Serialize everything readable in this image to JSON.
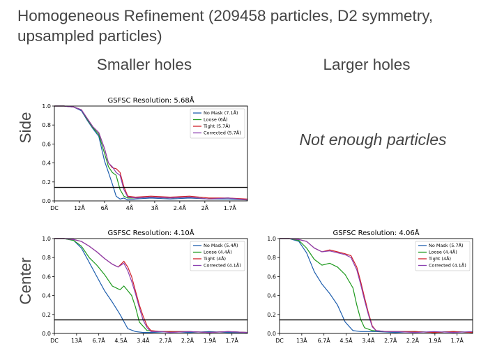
{
  "title": "Homogeneous Refinement (209458 particles, D2 symmetry, upsampled particles)",
  "columns": [
    "Smaller holes",
    "Larger holes"
  ],
  "rows": [
    "Side",
    "Center"
  ],
  "placeholder_text": "Not enough particles",
  "colors": {
    "No Mask": "#1f5fae",
    "Loose": "#1e9a1e",
    "Tight": "#d0202a",
    "Corrected": "#8a3fb0",
    "threshold": "#000000"
  },
  "chart_data": [
    {
      "id": "side-smaller",
      "type": "line",
      "title": "GSFSC Resolution: 5.68Å",
      "ylim": [
        0,
        1
      ],
      "yticks": [
        "0.0",
        "0.2",
        "0.4",
        "0.6",
        "0.8",
        "1.0"
      ],
      "xticks": [
        "DC",
        "12Å",
        "6Å",
        "4Å",
        "3Å",
        "2.4Å",
        "2Å",
        "1.7Å"
      ],
      "threshold": 0.143,
      "legend": [
        "No Mask (7.1Å)",
        "Loose (6Å)",
        "Tight (5.7Å)",
        "Corrected (5.7Å)"
      ],
      "series": [
        {
          "name": "No Mask (7.1Å)",
          "key": "No Mask",
          "x": [
            0,
            0.05,
            0.1,
            0.14,
            0.17,
            0.2,
            0.23,
            0.26,
            0.28,
            0.3,
            0.32,
            0.34,
            0.36,
            0.38,
            0.42,
            0.5,
            0.6,
            0.7,
            0.8,
            0.9,
            1.0
          ],
          "y": [
            1.0,
            1.0,
            0.99,
            0.95,
            0.85,
            0.76,
            0.68,
            0.42,
            0.3,
            0.18,
            0.05,
            0.02,
            0.03,
            0.01,
            0.02,
            0.03,
            0.02,
            0.03,
            0.02,
            0.02,
            0.01
          ]
        },
        {
          "name": "Loose (6Å)",
          "key": "Loose",
          "x": [
            0,
            0.05,
            0.1,
            0.14,
            0.17,
            0.2,
            0.23,
            0.26,
            0.28,
            0.3,
            0.32,
            0.34,
            0.36,
            0.38,
            0.42,
            0.5,
            0.6,
            0.7,
            0.8,
            0.9,
            1.0
          ],
          "y": [
            1.0,
            1.0,
            0.99,
            0.96,
            0.86,
            0.77,
            0.7,
            0.5,
            0.36,
            0.3,
            0.27,
            0.12,
            0.05,
            0.03,
            0.03,
            0.04,
            0.03,
            0.04,
            0.02,
            0.03,
            0.01
          ]
        },
        {
          "name": "Tight (5.7Å)",
          "key": "Tight",
          "x": [
            0,
            0.05,
            0.1,
            0.14,
            0.17,
            0.2,
            0.23,
            0.26,
            0.28,
            0.3,
            0.32,
            0.34,
            0.36,
            0.38,
            0.42,
            0.5,
            0.6,
            0.7,
            0.8,
            0.9,
            1.0
          ],
          "y": [
            1.0,
            1.0,
            0.99,
            0.96,
            0.87,
            0.78,
            0.72,
            0.55,
            0.4,
            0.35,
            0.34,
            0.3,
            0.15,
            0.05,
            0.04,
            0.05,
            0.04,
            0.05,
            0.03,
            0.03,
            0.02
          ]
        },
        {
          "name": "Corrected (5.7Å)",
          "key": "Corrected",
          "x": [
            0,
            0.05,
            0.1,
            0.14,
            0.17,
            0.2,
            0.23,
            0.26,
            0.28,
            0.3,
            0.32,
            0.34,
            0.36,
            0.38,
            0.42,
            0.5,
            0.6,
            0.7,
            0.8,
            0.9,
            1.0
          ],
          "y": [
            1.0,
            1.0,
            0.99,
            0.96,
            0.87,
            0.78,
            0.72,
            0.55,
            0.4,
            0.36,
            0.3,
            0.27,
            0.12,
            0.04,
            0.03,
            0.04,
            0.03,
            0.04,
            0.02,
            0.03,
            0.01
          ]
        }
      ]
    },
    {
      "id": "center-smaller",
      "type": "line",
      "title": "GSFSC Resolution: 4.10Å",
      "ylim": [
        0,
        1
      ],
      "yticks": [
        "0.0",
        "0.2",
        "0.4",
        "0.6",
        "0.8",
        "1.0"
      ],
      "xticks": [
        "DC",
        "13Å",
        "6.7Å",
        "4.5Å",
        "3.4Å",
        "2.7Å",
        "2.2Å",
        "1.9Å",
        "1.7Å"
      ],
      "threshold": 0.143,
      "legend": [
        "No Mask (5.4Å)",
        "Loose (4.4Å)",
        "Tight (4Å)",
        "Corrected (4.1Å)"
      ],
      "series": [
        {
          "name": "No Mask (5.4Å)",
          "key": "No Mask",
          "x": [
            0,
            0.05,
            0.1,
            0.14,
            0.18,
            0.22,
            0.26,
            0.3,
            0.34,
            0.38,
            0.42,
            0.46,
            0.5,
            0.6,
            0.7,
            0.8,
            0.9,
            1.0
          ],
          "y": [
            1.0,
            1.0,
            0.98,
            0.9,
            0.75,
            0.6,
            0.45,
            0.33,
            0.2,
            0.05,
            0.02,
            0.01,
            0.01,
            0.02,
            0.01,
            0.02,
            0.01,
            0.01
          ]
        },
        {
          "name": "Loose (4.4Å)",
          "key": "Loose",
          "x": [
            0,
            0.05,
            0.1,
            0.14,
            0.18,
            0.22,
            0.26,
            0.3,
            0.34,
            0.36,
            0.38,
            0.4,
            0.42,
            0.44,
            0.48,
            0.55,
            0.6,
            0.7,
            0.8,
            0.9,
            1.0
          ],
          "y": [
            1.0,
            1.0,
            0.98,
            0.92,
            0.8,
            0.72,
            0.62,
            0.5,
            0.46,
            0.5,
            0.45,
            0.4,
            0.28,
            0.12,
            0.03,
            0.02,
            0.02,
            0.02,
            0.01,
            0.02,
            0.01
          ]
        },
        {
          "name": "Tight (4Å)",
          "key": "Tight",
          "x": [
            0,
            0.05,
            0.1,
            0.14,
            0.18,
            0.22,
            0.26,
            0.3,
            0.33,
            0.36,
            0.38,
            0.4,
            0.42,
            0.44,
            0.46,
            0.48,
            0.5,
            0.55,
            0.6,
            0.7,
            0.8,
            0.9,
            1.0
          ],
          "y": [
            1.0,
            1.0,
            0.99,
            0.97,
            0.92,
            0.86,
            0.79,
            0.73,
            0.7,
            0.76,
            0.7,
            0.6,
            0.45,
            0.3,
            0.18,
            0.08,
            0.03,
            0.02,
            0.02,
            0.02,
            0.01,
            0.02,
            0.01
          ]
        },
        {
          "name": "Corrected (4.1Å)",
          "key": "Corrected",
          "x": [
            0,
            0.05,
            0.1,
            0.14,
            0.18,
            0.22,
            0.26,
            0.3,
            0.33,
            0.36,
            0.38,
            0.4,
            0.42,
            0.44,
            0.46,
            0.48,
            0.5,
            0.55,
            0.6,
            0.7,
            0.8,
            0.9,
            1.0
          ],
          "y": [
            1.0,
            1.0,
            0.99,
            0.97,
            0.92,
            0.86,
            0.79,
            0.73,
            0.7,
            0.74,
            0.66,
            0.55,
            0.42,
            0.27,
            0.14,
            0.06,
            0.02,
            0.02,
            0.01,
            0.02,
            0.01,
            0.02,
            0.01
          ]
        }
      ]
    },
    {
      "id": "center-larger",
      "type": "line",
      "title": "GSFSC Resolution: 4.06Å",
      "ylim": [
        0,
        1
      ],
      "yticks": [
        "0.0",
        "0.2",
        "0.4",
        "0.6",
        "0.8",
        "1.0"
      ],
      "xticks": [
        "DC",
        "13Å",
        "6.7Å",
        "4.5Å",
        "3.4Å",
        "2.7Å",
        "2.2Å",
        "1.9Å",
        "1.7Å"
      ],
      "threshold": 0.143,
      "legend": [
        "No Mask (5.7Å)",
        "Loose (4.4Å)",
        "Tight (4Å)",
        "Corrected (4.1Å)"
      ],
      "series": [
        {
          "name": "No Mask (5.7Å)",
          "key": "No Mask",
          "x": [
            0,
            0.05,
            0.1,
            0.14,
            0.18,
            0.22,
            0.26,
            0.3,
            0.34,
            0.38,
            0.42,
            0.5,
            0.6,
            0.7,
            0.8,
            0.9,
            1.0
          ],
          "y": [
            1.0,
            1.0,
            0.97,
            0.85,
            0.65,
            0.52,
            0.42,
            0.3,
            0.12,
            0.03,
            0.02,
            0.02,
            0.01,
            0.02,
            0.01,
            0.02,
            0.01
          ]
        },
        {
          "name": "Loose (4.4Å)",
          "key": "Loose",
          "x": [
            0,
            0.05,
            0.1,
            0.14,
            0.18,
            0.22,
            0.26,
            0.3,
            0.34,
            0.38,
            0.4,
            0.42,
            0.44,
            0.48,
            0.55,
            0.6,
            0.7,
            0.8,
            0.9,
            1.0
          ],
          "y": [
            1.0,
            1.0,
            0.98,
            0.9,
            0.78,
            0.72,
            0.74,
            0.7,
            0.62,
            0.48,
            0.3,
            0.15,
            0.06,
            0.03,
            0.02,
            0.02,
            0.02,
            0.01,
            0.02,
            0.01
          ]
        },
        {
          "name": "Tight (4Å)",
          "key": "Tight",
          "x": [
            0,
            0.05,
            0.1,
            0.14,
            0.18,
            0.22,
            0.26,
            0.3,
            0.34,
            0.37,
            0.4,
            0.42,
            0.44,
            0.46,
            0.48,
            0.5,
            0.55,
            0.6,
            0.7,
            0.8,
            0.9,
            1.0
          ],
          "y": [
            1.0,
            1.0,
            0.99,
            0.97,
            0.9,
            0.86,
            0.88,
            0.86,
            0.84,
            0.82,
            0.7,
            0.55,
            0.38,
            0.22,
            0.08,
            0.03,
            0.02,
            0.02,
            0.02,
            0.01,
            0.02,
            0.01
          ]
        },
        {
          "name": "Corrected (4.1Å)",
          "key": "Corrected",
          "x": [
            0,
            0.05,
            0.1,
            0.14,
            0.18,
            0.22,
            0.26,
            0.3,
            0.34,
            0.37,
            0.4,
            0.42,
            0.44,
            0.46,
            0.48,
            0.5,
            0.55,
            0.6,
            0.7,
            0.8,
            0.9,
            1.0
          ],
          "y": [
            1.0,
            1.0,
            0.99,
            0.97,
            0.9,
            0.86,
            0.87,
            0.85,
            0.83,
            0.8,
            0.67,
            0.52,
            0.35,
            0.2,
            0.07,
            0.03,
            0.02,
            0.02,
            0.01,
            0.02,
            0.01,
            0.02
          ]
        }
      ]
    }
  ]
}
